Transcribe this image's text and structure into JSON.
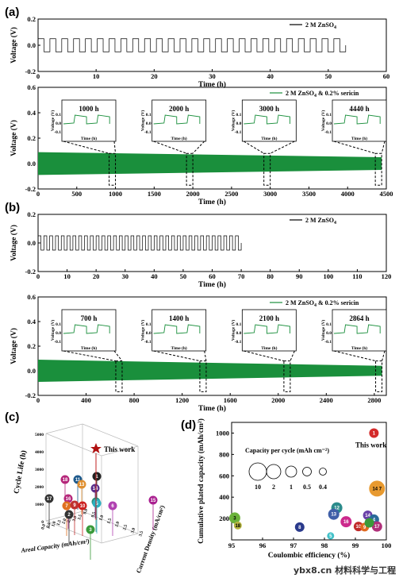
{
  "panel_a_label": "(a)",
  "panel_b_label": "(b)",
  "panel_c_label": "(c)",
  "panel_d_label": "(d)",
  "watermark": "ybx8.cn 材料科学与工程",
  "chart_data": [
    {
      "id": "a_top",
      "type": "line",
      "legend": "2 M ZnSO4",
      "xlabel": "Time (h)",
      "ylabel": "Voltage (V)",
      "xlim": [
        0,
        60
      ],
      "ylim": [
        -0.2,
        0.2
      ],
      "xticks": [
        0,
        10,
        20,
        30,
        40,
        50,
        60
      ],
      "yticks": [
        -0.2,
        0.0,
        0.2
      ],
      "series_end_h": 53,
      "amplitude_V": 0.05,
      "color": "#000000"
    },
    {
      "id": "a_bottom",
      "type": "line",
      "legend": "2 M ZnSO4 & 0.2% sericin",
      "xlabel": "Time (h)",
      "ylabel": "Voltage (V)",
      "xlim": [
        0,
        4500
      ],
      "ylim": [
        -0.2,
        0.6
      ],
      "xticks": [
        0,
        500,
        1000,
        1500,
        2000,
        2500,
        3000,
        3500,
        4000,
        4500
      ],
      "yticks": [
        -0.2,
        0.0,
        0.2,
        0.4,
        0.6
      ],
      "series_end_h": 4440,
      "envelope_start_V": 0.09,
      "envelope_end_V": 0.05,
      "color": "#1a8f3c",
      "insets": [
        {
          "label": "1000 h",
          "at": 1000
        },
        {
          "label": "2000 h",
          "at": 2000
        },
        {
          "label": "3000 h",
          "at": 3000
        },
        {
          "label": "4440 h",
          "at": 4440
        }
      ],
      "inset_axes": {
        "xlabel": "Time (h)",
        "ylabel": "Voltage (V)",
        "yticks": [
          -0.1,
          0.0,
          0.1
        ]
      }
    },
    {
      "id": "b_top",
      "type": "line",
      "legend": "2 M ZnSO4",
      "xlabel": "Time (h)",
      "ylabel": "Voltage (V)",
      "xlim": [
        0,
        120
      ],
      "ylim": [
        -0.2,
        0.2
      ],
      "xticks": [
        0,
        10,
        20,
        30,
        40,
        50,
        60,
        70,
        80,
        90,
        100,
        110,
        120
      ],
      "yticks": [
        -0.2,
        0.0,
        0.2
      ],
      "series_end_h": 70,
      "amplitude_V": 0.05,
      "color": "#000000"
    },
    {
      "id": "b_bottom",
      "type": "line",
      "legend": "2 M ZnSO4 & 0.2% sericin",
      "xlabel": "Time (h)",
      "ylabel": "Voltage (V)",
      "xlim": [
        0,
        2900
      ],
      "ylim": [
        -0.2,
        0.6
      ],
      "xticks": [
        0,
        400,
        800,
        1200,
        1600,
        2000,
        2400,
        2800
      ],
      "yticks": [
        -0.2,
        0.0,
        0.2,
        0.4,
        0.6
      ],
      "series_end_h": 2864,
      "envelope_start_V": 0.09,
      "envelope_end_V": 0.04,
      "color": "#1a8f3c",
      "insets": [
        {
          "label": "700 h",
          "at": 700
        },
        {
          "label": "1400 h",
          "at": 1400
        },
        {
          "label": "2100 h",
          "at": 2100
        },
        {
          "label": "2864 h",
          "at": 2864
        }
      ],
      "inset_axes": {
        "xlabel": "Time (h)",
        "ylabel": "Voltage (V)",
        "yticks": [
          -0.1,
          0.0,
          0.1
        ]
      }
    },
    {
      "id": "c",
      "type": "scatter",
      "title": "",
      "xlabel": "Areal Capacity (mAh/cm²)",
      "ylabel": "Cycle Life (h)",
      "zlabel": "Current Density (mA/cm²)",
      "yticks": [
        0,
        1000,
        2000,
        3000,
        4000,
        5000
      ],
      "xticks": [
        "0.0",
        "0.5",
        "1.0",
        "1.5",
        "2.0",
        "2.5",
        "3.0",
        "3.5"
      ],
      "zticks": [
        "0.0",
        "0.5",
        "1.0",
        "1.5",
        "2.0",
        "2.5",
        "3.0",
        "3.5"
      ],
      "annotation": "This work",
      "points": [
        {
          "id": "18",
          "color": "#b5267a"
        },
        {
          "id": "11",
          "color": "#1e5a8c"
        },
        {
          "id": "17",
          "color": "#333333"
        },
        {
          "id": "16",
          "color": "#b5267a"
        },
        {
          "id": "13",
          "color": "#e09030"
        },
        {
          "id": "1",
          "color": "#222222"
        },
        {
          "id": "14",
          "color": "#5b2f8a"
        },
        {
          "id": "7",
          "color": "#e07020"
        },
        {
          "id": "9",
          "color": "#c03030"
        },
        {
          "id": "10",
          "color": "#cc2020"
        },
        {
          "id": "12",
          "color": "#2c8c7c"
        },
        {
          "id": "2",
          "color": "#333333"
        },
        {
          "id": "5",
          "color": "#2ab0c0"
        },
        {
          "id": "6",
          "color": "#b040b0"
        },
        {
          "id": "3",
          "color": "#3a9a3a"
        },
        {
          "id": "15",
          "color": "#aa2090"
        }
      ]
    },
    {
      "id": "d",
      "type": "scatter",
      "xlabel": "Coulombic efficiency (%)",
      "ylabel": "Cumulative plated capacity (mAh/cm²)",
      "xlim": [
        95,
        100
      ],
      "ylim": [
        0,
        1100
      ],
      "xticks": [
        95,
        96,
        97,
        98,
        99,
        100
      ],
      "yticks": [
        200,
        400,
        600,
        800,
        1000
      ],
      "annotation": "This work",
      "size_legend": {
        "title": "Capacity per cycle (mAh cm⁻²)",
        "values": [
          "10",
          "2",
          "1",
          "0.5",
          "0.4"
        ]
      },
      "points": [
        {
          "label": "1",
          "ce": 99.6,
          "cap": 1000,
          "color": "#d42a2a"
        },
        {
          "label": "14 7",
          "ce": 99.7,
          "cap": 480,
          "color": "#e89a30"
        },
        {
          "label": "12",
          "ce": 98.4,
          "cap": 300,
          "color": "#2c8c8c"
        },
        {
          "label": "13",
          "ce": 98.3,
          "cap": 240,
          "color": "#4060a8"
        },
        {
          "label": "3",
          "ce": 95.1,
          "cap": 205,
          "color": "#6ab23a"
        },
        {
          "label": "18",
          "ce": 95.2,
          "cap": 135,
          "color": "#b5b540"
        },
        {
          "label": "8",
          "ce": 97.2,
          "cap": 120,
          "color": "#2a3a8c"
        },
        {
          "label": "5",
          "ce": 98.2,
          "cap": 38,
          "color": "#40c0c8"
        },
        {
          "label": "16",
          "ce": 98.7,
          "cap": 170,
          "color": "#cc2a8c"
        },
        {
          "label": "14",
          "ce": 99.4,
          "cap": 230,
          "color": "#6a40a8"
        },
        {
          "label": "4",
          "ce": 99.6,
          "cap": 190,
          "color": "#2a6a9a"
        },
        {
          "label": "10",
          "ce": 99.1,
          "cap": 125,
          "color": "#c02a2a"
        },
        {
          "label": "9",
          "ce": 99.3,
          "cap": 120,
          "color": "#e06a20"
        },
        {
          "label": "17",
          "ce": 99.7,
          "cap": 125,
          "color": "#b0307a"
        },
        {
          "label": "",
          "ce": 99.45,
          "cap": 160,
          "color": "#3a9a3a"
        }
      ]
    }
  ]
}
